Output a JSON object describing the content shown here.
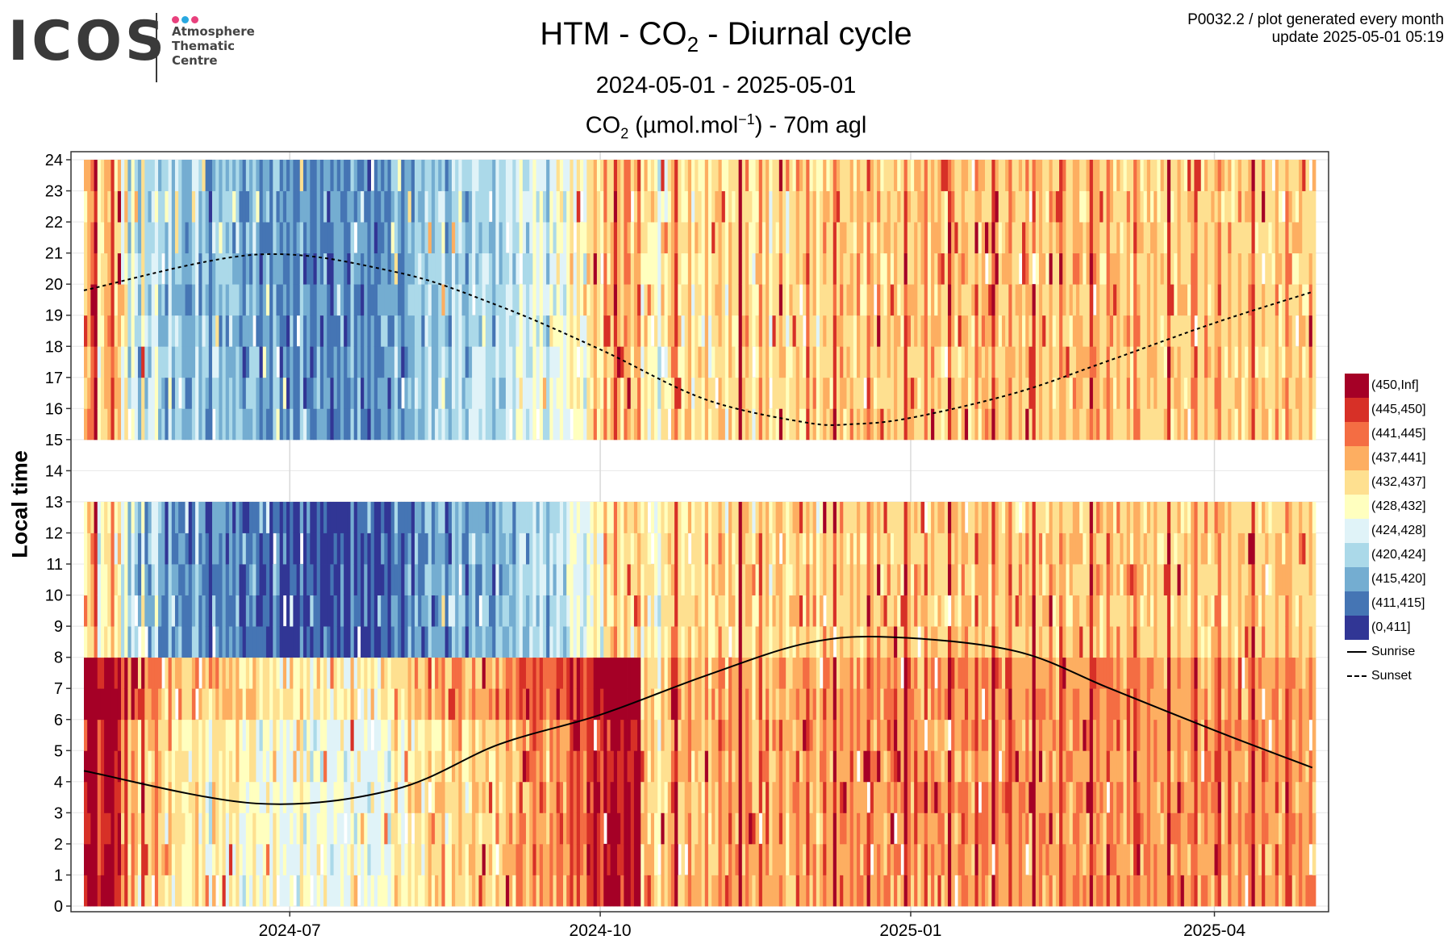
{
  "logo": {
    "wordmark": "ICOS",
    "lines": [
      "Atmosphere",
      "Thematic",
      "Centre"
    ],
    "dot_colors": [
      "#e8417d",
      "#29a8e0",
      "#e8417d"
    ]
  },
  "header": {
    "title_prefix": "HTM - CO",
    "title_sub": "2",
    "title_suffix": " - Diurnal cycle",
    "date_range": "2024-05-01 - 2025-05-01",
    "unit_prefix": "CO",
    "unit_sub": "2",
    "unit_mid": " (µmol.mol",
    "unit_sup": "−1",
    "unit_suffix": ") - 70m agl",
    "meta_line1": "P0032.2 / plot generated every month",
    "meta_line2": "update  2025-05-01 05:19"
  },
  "chart_data": {
    "type": "heatmap",
    "title": "HTM - CO2 - Diurnal cycle",
    "subtitle": "2024-05-01 - 2025-05-01",
    "value_label": "CO2 (µmol.mol−1) - 70m agl",
    "ylabel": "Local time",
    "xlabel": "",
    "xlim": [
      "2024-05-01",
      "2025-05-01"
    ],
    "x_ticks": [
      "2024-07",
      "2024-10",
      "2025-01",
      "2025-04"
    ],
    "x_tick_dates": [
      "2024-07-01",
      "2024-10-01",
      "2025-01-01",
      "2025-04-01"
    ],
    "ylim": [
      0,
      24
    ],
    "y_ticks": [
      0,
      1,
      2,
      3,
      4,
      5,
      6,
      7,
      8,
      9,
      10,
      11,
      12,
      13,
      14,
      15,
      16,
      17,
      18,
      19,
      20,
      21,
      22,
      23,
      24
    ],
    "missing_hours": [
      13,
      14
    ],
    "grid": true,
    "legend_position": "right",
    "bins": [
      {
        "label": "(450,Inf]",
        "color": "#a50026"
      },
      {
        "label": "(445,450]",
        "color": "#d73027"
      },
      {
        "label": "(441,445]",
        "color": "#f46d43"
      },
      {
        "label": "(437,441]",
        "color": "#fdae61"
      },
      {
        "label": "(432,437]",
        "color": "#fee090"
      },
      {
        "label": "(428,432]",
        "color": "#ffffbf"
      },
      {
        "label": "(424,428]",
        "color": "#e0f3f8"
      },
      {
        "label": "(420,424]",
        "color": "#abd9e9"
      },
      {
        "label": "(415,420]",
        "color": "#74add1"
      },
      {
        "label": "(411,415]",
        "color": "#4575b4"
      },
      {
        "label": "(0,411]",
        "color": "#313695"
      }
    ],
    "daily_mean_bin": [
      5,
      4,
      3,
      1,
      6,
      5,
      4,
      4,
      2,
      5,
      4,
      7,
      5,
      8,
      6,
      7,
      9,
      5,
      8,
      8,
      7,
      6,
      8,
      8,
      9,
      7,
      9,
      8,
      8,
      9,
      9,
      9,
      8,
      7,
      9,
      8,
      9,
      10,
      8,
      8,
      9,
      8,
      9,
      8,
      9,
      8,
      9,
      10,
      9,
      9,
      8,
      9,
      10,
      9,
      9,
      10,
      8,
      9,
      10,
      9,
      10,
      9,
      10,
      10,
      8,
      10,
      9,
      10,
      10,
      9,
      10,
      9,
      10,
      10,
      9,
      10,
      9,
      10,
      10,
      8,
      10,
      9,
      10,
      9,
      10,
      9,
      10,
      10,
      9,
      9,
      10,
      9,
      8,
      9,
      10,
      9,
      8,
      9,
      8,
      8,
      9,
      8,
      7,
      9,
      8,
      8,
      7,
      9,
      9,
      7,
      8,
      7,
      8,
      9,
      8,
      7,
      8,
      8,
      7,
      8,
      8,
      9,
      7,
      8,
      8,
      7,
      7,
      8,
      7,
      6,
      7,
      8,
      7,
      6,
      7,
      6,
      7,
      8,
      6,
      7,
      6,
      6,
      7,
      6,
      5,
      6,
      5,
      6,
      7,
      5,
      5,
      4,
      5,
      6,
      3,
      5,
      4,
      2,
      4,
      5,
      3,
      4,
      5,
      4,
      3,
      5,
      4,
      5,
      4,
      5,
      6,
      4,
      5,
      4,
      3,
      1,
      4,
      5,
      4,
      3,
      5,
      4,
      4,
      5,
      3,
      5,
      4,
      4,
      3,
      4,
      5,
      3,
      4,
      4,
      0,
      4,
      3,
      4,
      5,
      4,
      2,
      4,
      3,
      5,
      4,
      4,
      3,
      4,
      5,
      4,
      4,
      3,
      4,
      4,
      2,
      4,
      3,
      5,
      4,
      3,
      4,
      4,
      1,
      4,
      3,
      4,
      4,
      3,
      4,
      3,
      4,
      4,
      2,
      3,
      4,
      3,
      4,
      4,
      3,
      4,
      3,
      4,
      4,
      1,
      3,
      4,
      3,
      4,
      4,
      2,
      4,
      3,
      4,
      3,
      4,
      4,
      1,
      3,
      4,
      4,
      3,
      3,
      4,
      4,
      2,
      4,
      3,
      3,
      4,
      1,
      3,
      4,
      4,
      3,
      2,
      4,
      4,
      3,
      4,
      3,
      4,
      1,
      4,
      3,
      4,
      4,
      3,
      4,
      4,
      2,
      3,
      4,
      4,
      3,
      3,
      4,
      4,
      4,
      1,
      3,
      3,
      4,
      4,
      2,
      3,
      4,
      3,
      4,
      4,
      3,
      4,
      2,
      3,
      4,
      4,
      3,
      4,
      3,
      4,
      4,
      4,
      1,
      4,
      4,
      3,
      4,
      4,
      4,
      3,
      2,
      4,
      4,
      3,
      4,
      4,
      3,
      2,
      4,
      4,
      3,
      4,
      4,
      3,
      4,
      4,
      3,
      1,
      4,
      4,
      3,
      4,
      4,
      4,
      3,
      4,
      4,
      2,
      3,
      4,
      4,
      3,
      4,
      4,
      3,
      4,
      4,
      4,
      1,
      4,
      3
    ],
    "series": [
      {
        "name": "Sunrise",
        "style": "solid",
        "points": [
          [
            "2024-05-01",
            4.35
          ],
          [
            "2024-06-21",
            3.3
          ],
          [
            "2024-08-01",
            3.75
          ],
          [
            "2024-09-01",
            5.2
          ],
          [
            "2024-10-01",
            6.15
          ],
          [
            "2024-11-01",
            7.4
          ],
          [
            "2024-12-01",
            8.45
          ],
          [
            "2024-12-26",
            8.65
          ],
          [
            "2025-02-01",
            8.2
          ],
          [
            "2025-03-01",
            7.0
          ],
          [
            "2025-04-01",
            5.65
          ],
          [
            "2025-04-30",
            4.45
          ]
        ]
      },
      {
        "name": "Sunset",
        "style": "dashed",
        "points": [
          [
            "2024-05-01",
            19.8
          ],
          [
            "2024-06-21",
            20.95
          ],
          [
            "2024-08-01",
            20.4
          ],
          [
            "2024-09-01",
            19.3
          ],
          [
            "2024-10-01",
            17.9
          ],
          [
            "2024-11-01",
            16.3
          ],
          [
            "2024-12-01",
            15.55
          ],
          [
            "2024-12-15",
            15.5
          ],
          [
            "2025-01-01",
            15.7
          ],
          [
            "2025-02-01",
            16.5
          ],
          [
            "2025-03-01",
            17.55
          ],
          [
            "2025-04-01",
            18.75
          ],
          [
            "2025-04-30",
            19.75
          ]
        ]
      }
    ]
  }
}
